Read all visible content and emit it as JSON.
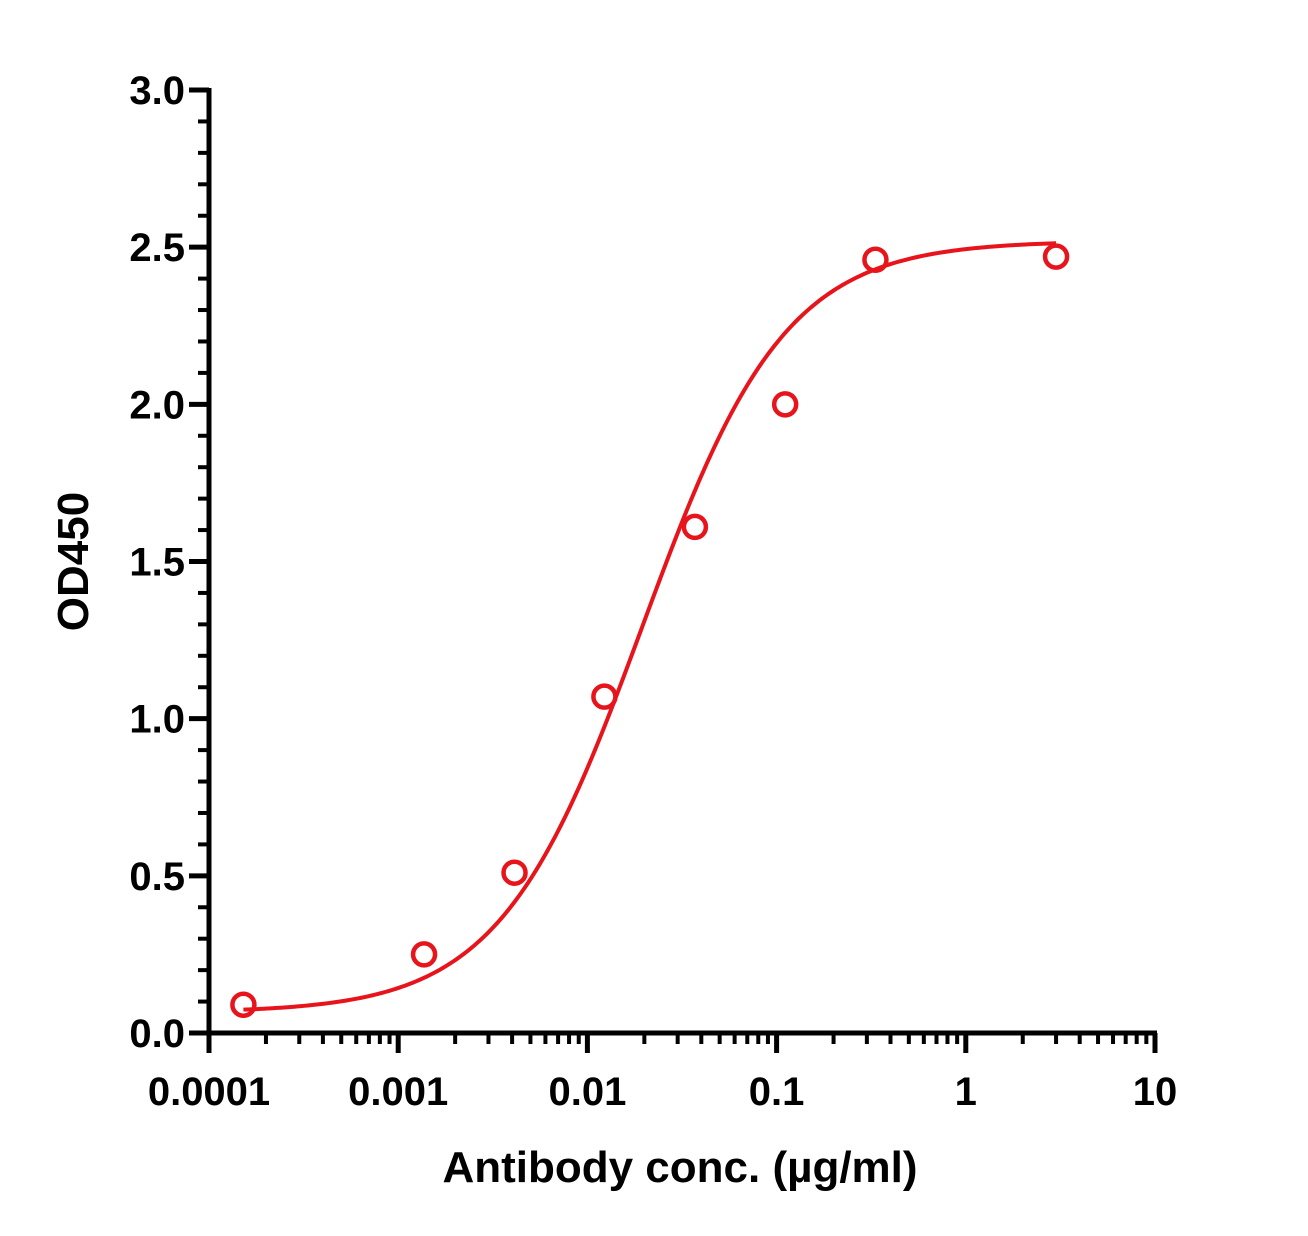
{
  "chart_data": {
    "type": "scatter",
    "title": "",
    "xlabel": "Antibody conc. (µg/ml)",
    "ylabel": "OD450",
    "x_scale": "log",
    "xlim": [
      0.0001,
      10
    ],
    "ylim": [
      0,
      3.0
    ],
    "x_tick_labels": [
      "0.0001",
      "0.001",
      "0.01",
      "0.1",
      "1",
      "10"
    ],
    "x_tick_values": [
      0.0001,
      0.001,
      0.01,
      0.1,
      1,
      10
    ],
    "y_tick_labels": [
      "0.0",
      "0.5",
      "1.0",
      "1.5",
      "2.0",
      "2.5",
      "3.0"
    ],
    "y_tick_values": [
      0,
      0.5,
      1.0,
      1.5,
      2.0,
      2.5,
      3.0
    ],
    "grid": false,
    "legend": "none",
    "color": "#e8141b",
    "series": [
      {
        "points": [
          {
            "x": 0.000152,
            "y": 0.09
          },
          {
            "x": 0.00137,
            "y": 0.25
          },
          {
            "x": 0.00412,
            "y": 0.51
          },
          {
            "x": 0.0123,
            "y": 1.07
          },
          {
            "x": 0.037,
            "y": 1.61
          },
          {
            "x": 0.111,
            "y": 2.0
          },
          {
            "x": 0.333,
            "y": 2.46
          },
          {
            "x": 3.0,
            "y": 2.47
          }
        ],
        "fit": {
          "model": "4PL",
          "bottom": 0.065,
          "top": 2.52,
          "ec50": 0.0195,
          "hill": 1.15,
          "x_range": [
            0.000152,
            3.0
          ]
        }
      }
    ]
  }
}
